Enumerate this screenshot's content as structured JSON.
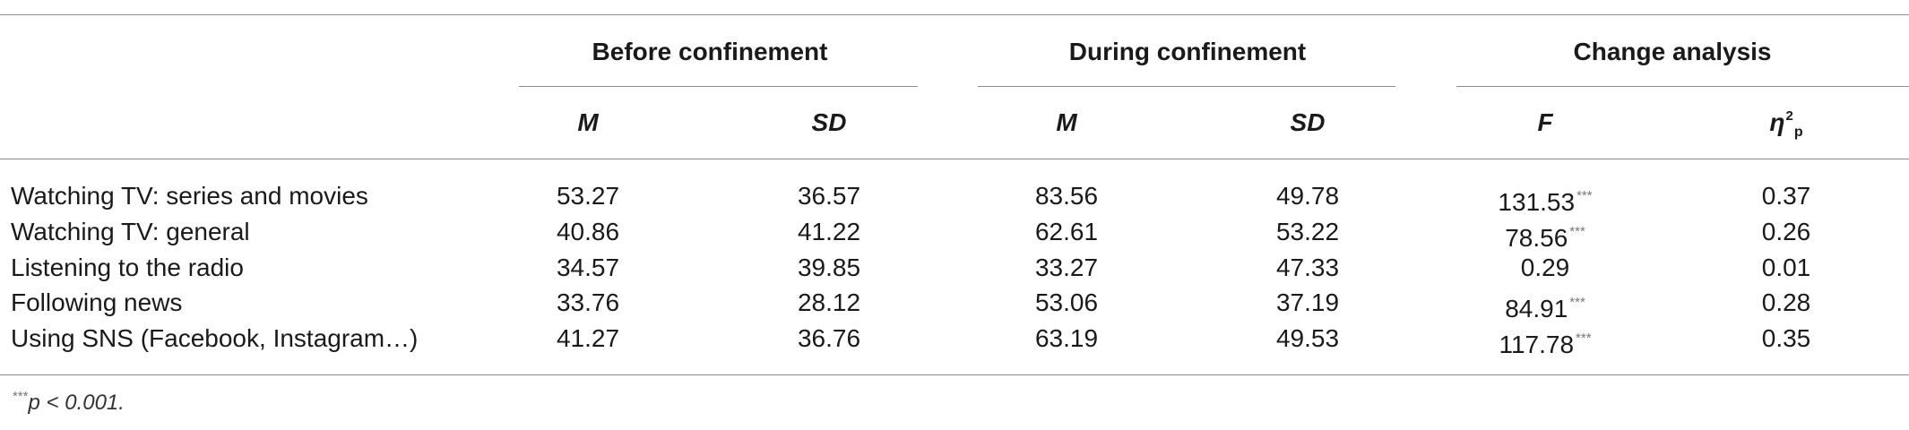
{
  "table": {
    "groups": [
      {
        "label": "Before confinement"
      },
      {
        "label": "During confinement"
      },
      {
        "label": "Change analysis"
      }
    ],
    "subheaders": [
      "M",
      "SD",
      "M",
      "SD",
      "F",
      "η"
    ],
    "eta_superscript": "2",
    "eta_subscript": "p",
    "rows": [
      {
        "label": "Watching TV: series and movies",
        "values": [
          "53.27",
          "36.57",
          "83.56",
          "49.78",
          "131.53",
          "0.37"
        ],
        "sig": "***"
      },
      {
        "label": "Watching TV: general",
        "values": [
          "40.86",
          "41.22",
          "62.61",
          "53.22",
          "78.56",
          "0.26"
        ],
        "sig": "***"
      },
      {
        "label": "Listening to the radio",
        "values": [
          "34.57",
          "39.85",
          "33.27",
          "47.33",
          "0.29",
          "0.01"
        ],
        "sig": ""
      },
      {
        "label": "Following news",
        "values": [
          "33.76",
          "28.12",
          "53.06",
          "37.19",
          "84.91",
          "0.28"
        ],
        "sig": "***"
      },
      {
        "label": "Using SNS (Facebook, Instagram…)",
        "values": [
          "41.27",
          "36.76",
          "63.19",
          "49.53",
          "117.78",
          "0.35"
        ],
        "sig": "***"
      }
    ],
    "footnote": {
      "marker": "***",
      "text": "p < 0.001."
    }
  }
}
